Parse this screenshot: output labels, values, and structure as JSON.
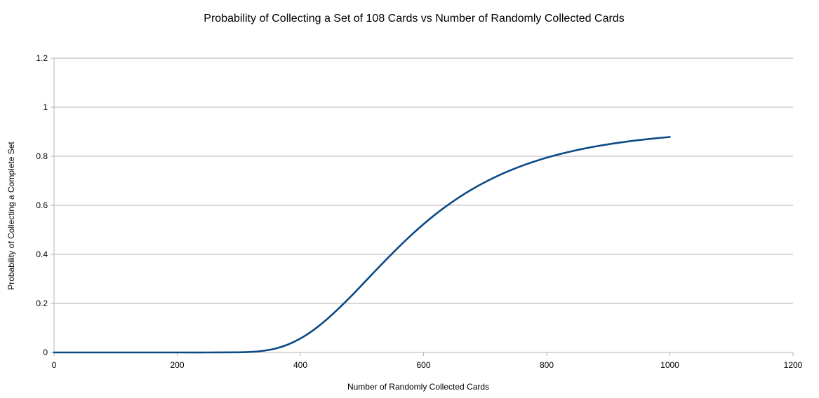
{
  "chart_data": {
    "type": "line",
    "title": "Probability of Collecting a Set of 108 Cards vs Number of Randomly Collected Cards",
    "xlabel": "Number of Randomly Collected Cards",
    "ylabel": "Probability of Collecting a Complete Set",
    "xlim": [
      0,
      1200
    ],
    "ylim": [
      0,
      1.2
    ],
    "xticks": [
      0,
      200,
      400,
      600,
      800,
      1000,
      1200
    ],
    "yticks": [
      0,
      0.2,
      0.4,
      0.6,
      0.8,
      1,
      1.2
    ],
    "xtick_labels": [
      "0",
      "200",
      "400",
      "600",
      "800",
      "1000",
      "1200"
    ],
    "ytick_labels": [
      "0",
      "0.2",
      "0.4",
      "0.6",
      "0.8",
      "1",
      "1.2"
    ],
    "grid": "horizontal",
    "legend": "none",
    "line_color": "#0b4a85",
    "grid_color": "#b3b3b3",
    "series": [
      {
        "x": [
          0,
          100,
          200,
          250,
          300,
          320,
          340,
          360,
          380,
          400,
          420,
          440,
          460,
          480,
          500,
          520,
          540,
          560,
          580,
          600,
          620,
          640,
          660,
          680,
          700,
          720,
          740,
          760,
          780,
          800,
          820,
          840,
          860,
          880,
          900,
          920,
          940,
          960,
          980,
          1000
        ],
        "values": [
          0,
          0,
          0,
          0,
          0.0006,
          0.0023,
          0.0068,
          0.0162,
          0.0325,
          0.0567,
          0.0891,
          0.1286,
          0.1741,
          0.2233,
          0.2753,
          0.3281,
          0.3801,
          0.4306,
          0.4784,
          0.5232,
          0.5645,
          0.6021,
          0.6363,
          0.6672,
          0.6947,
          0.7195,
          0.7416,
          0.7613,
          0.7786,
          0.7944,
          0.808,
          0.8201,
          0.8309,
          0.8403,
          0.8488,
          0.8563,
          0.863,
          0.8688,
          0.874,
          0.8786
        ]
      }
    ]
  }
}
